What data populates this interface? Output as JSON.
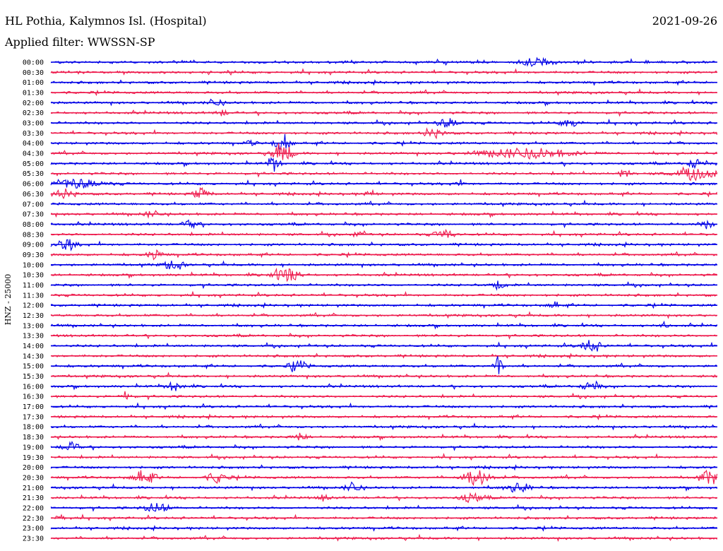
{
  "header": {
    "station": "HL Pothia, Kalymnos Isl. (Hospital)",
    "date": "2021-09-26",
    "filter": "Applied filter: WWSSN-SP"
  },
  "chart_data": {
    "type": "line",
    "ylabel": "HNZ - 25000",
    "row_labels": [
      "00:00",
      "00:30",
      "01:00",
      "01:30",
      "02:00",
      "02:30",
      "03:00",
      "03:30",
      "04:00",
      "04:30",
      "05:00",
      "05:30",
      "06:00",
      "06:30",
      "07:00",
      "07:30",
      "08:00",
      "08:30",
      "09:00",
      "09:30",
      "10:00",
      "10:30",
      "11:00",
      "11:30",
      "12:00",
      "12:30",
      "13:00",
      "13:30",
      "14:00",
      "14:30",
      "15:00",
      "15:30",
      "16:00",
      "16:30",
      "17:00",
      "17:30",
      "18:00",
      "18:30",
      "19:00",
      "19:30",
      "20:00",
      "20:30",
      "21:00",
      "21:30",
      "22:00",
      "22:30",
      "23:00",
      "23:30"
    ],
    "colors": [
      "#0000e6",
      "#ee1c4e"
    ],
    "grid": false
  }
}
